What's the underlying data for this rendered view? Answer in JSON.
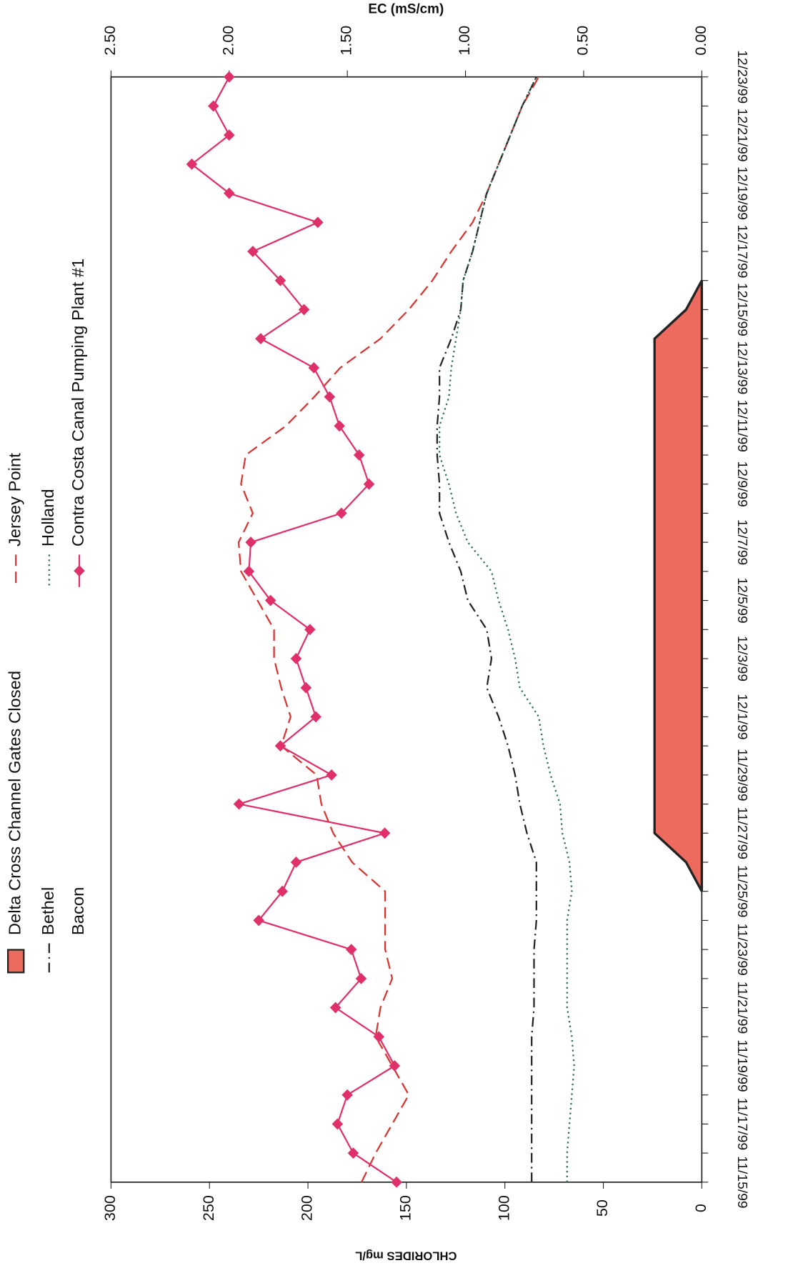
{
  "chart_data": {
    "type": "line",
    "y_label": "CHLORIDES mg/L",
    "y2_label": "EC (mS/cm)",
    "categories": [
      "11/15/99",
      null,
      "11/17/99",
      null,
      "11/19/99",
      null,
      "11/21/99",
      null,
      "11/23/99",
      null,
      "11/25/99",
      null,
      "11/27/99",
      null,
      "11/29/99",
      null,
      "12/1/99",
      null,
      "12/3/99",
      null,
      "12/5/99",
      null,
      "12/7/99",
      null,
      "12/9/99",
      null,
      "12/11/99",
      null,
      "12/13/99",
      null,
      "12/15/99",
      null,
      "12/17/99",
      null,
      "12/19/99",
      null,
      "12/21/99",
      null,
      "12/23/99"
    ],
    "ylim": [
      0,
      300
    ],
    "yticks": [
      0,
      50,
      100,
      150,
      200,
      250,
      300
    ],
    "y2lim": [
      0,
      2.5
    ],
    "y2ticks": [
      {
        "value": 0,
        "label": "0.00"
      },
      {
        "value": 0.5,
        "label": "0.50"
      },
      {
        "value": 1,
        "label": "1.00"
      },
      {
        "value": 1.5,
        "label": "1.50"
      },
      {
        "value": 2,
        "label": "2.00"
      },
      {
        "value": 2.5,
        "label": "2.50"
      }
    ],
    "series": [
      {
        "name": "Delta Cross Channel Gates Closed",
        "color": "#ec6a5e",
        "style": "area",
        "values": [
          null,
          null,
          null,
          null,
          null,
          null,
          null,
          null,
          null,
          null,
          0,
          8,
          24,
          24,
          24,
          24,
          24,
          24,
          24,
          24,
          24,
          24,
          24,
          24,
          24,
          24,
          24,
          24,
          24,
          24,
          8,
          0,
          null,
          null,
          null,
          null,
          null,
          null,
          null
        ]
      },
      {
        "name": "Jersey Point",
        "color": "#d9332f",
        "style": "dash",
        "axis": "y2",
        "values": [
          1.44,
          1.38,
          1.31,
          1.24,
          1.31,
          1.38,
          1.36,
          1.31,
          1.34,
          1.34,
          1.34,
          1.48,
          1.56,
          1.61,
          1.63,
          1.78,
          1.74,
          1.78,
          1.81,
          1.81,
          1.88,
          1.95,
          1.96,
          1.9,
          1.95,
          1.93,
          1.76,
          1.64,
          1.53,
          1.36,
          1.24,
          1.14,
          1.06,
          0.97,
          0.91,
          0.86,
          0.81,
          0.76,
          0.69
        ]
      },
      {
        "name": "Bethel",
        "color": "#222222",
        "style": "dashdot",
        "axis": "y2",
        "values": [
          0.72,
          0.72,
          0.72,
          0.72,
          0.72,
          0.72,
          0.71,
          0.71,
          0.71,
          0.7,
          0.7,
          0.7,
          0.74,
          0.77,
          0.79,
          0.82,
          0.86,
          0.91,
          0.89,
          0.91,
          0.99,
          1.02,
          1.07,
          1.11,
          1.11,
          1.12,
          1.12,
          1.11,
          1.11,
          1.06,
          1.02,
          1.01,
          0.97,
          0.94,
          0.91,
          0.86,
          0.81,
          0.76,
          0.7
        ]
      },
      {
        "name": "Holland",
        "color": "#2a6e50",
        "style": "dot",
        "axis": "y2",
        "values": [
          0.57,
          0.57,
          0.56,
          0.55,
          0.54,
          0.55,
          0.57,
          0.57,
          0.57,
          0.57,
          0.55,
          0.56,
          0.59,
          0.6,
          0.64,
          0.67,
          0.69,
          0.77,
          0.79,
          0.82,
          0.86,
          0.89,
          0.99,
          1.04,
          1.07,
          1.11,
          1.11,
          1.07,
          1.06,
          1.04,
          1.02,
          1.01,
          0.97,
          0.94,
          0.91,
          0.86,
          0.81,
          0.76,
          0.7
        ]
      },
      {
        "name": "Bacon",
        "values": [
          null,
          null,
          null,
          null,
          null,
          null,
          null,
          null,
          null,
          null,
          null,
          null,
          null,
          null,
          null,
          null,
          null,
          null,
          null,
          null,
          null,
          null,
          null,
          null,
          null,
          null,
          null,
          null,
          null,
          null,
          null,
          null,
          null,
          null,
          null,
          null,
          null,
          null,
          null
        ]
      },
      {
        "name": "Contra Costa Canal Pumping Plant #1",
        "color": "#e0306a",
        "style": "solid",
        "marker": "diamond",
        "values": [
          155,
          177,
          185,
          180,
          156,
          164,
          186,
          173,
          178,
          225,
          213,
          206,
          161,
          235,
          188,
          214,
          196,
          201,
          206,
          199,
          219,
          230,
          229,
          183,
          169,
          174,
          184,
          189,
          197,
          224,
          202,
          214,
          228,
          195,
          240,
          259,
          240,
          248,
          240
        ]
      }
    ]
  }
}
